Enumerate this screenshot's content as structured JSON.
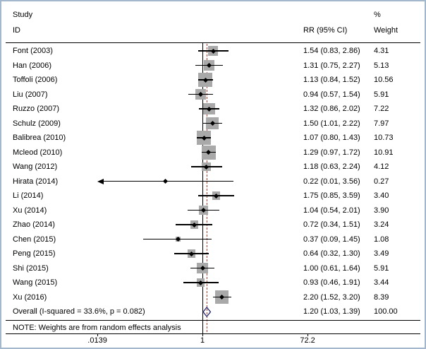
{
  "header": {
    "col_study_line1": "Study",
    "col_study_line2": "ID",
    "col_rr": "RR (95% CI)",
    "col_weight_line1": "%",
    "col_weight_line2": "Weight"
  },
  "note": "NOTE: Weights are from random effects analysis",
  "colors": {
    "square": "#a9a9a9",
    "ci_line": "#000000",
    "marker": "#000000",
    "null_line": "#000000",
    "overall_dash": "#c0392b",
    "diamond": "#26266e",
    "frame_border": "#a3b8cc"
  },
  "chart_data": {
    "type": "forest",
    "x_scale": "log10",
    "axis": {
      "min": 0.0139,
      "max": 72.2,
      "null_line": 1,
      "ticks": [
        ".0139",
        "1",
        "72.2"
      ],
      "tick_values": [
        0.0139,
        1,
        72.2
      ]
    },
    "studies": [
      {
        "label": "Font (2003)",
        "rr": 1.54,
        "lo": 0.83,
        "hi": 2.86,
        "ci_text": "1.54 (0.83, 2.86)",
        "weight": 4.31,
        "weight_text": "4.31"
      },
      {
        "label": "Han (2006)",
        "rr": 1.31,
        "lo": 0.75,
        "hi": 2.27,
        "ci_text": "1.31 (0.75, 2.27)",
        "weight": 5.13,
        "weight_text": "5.13"
      },
      {
        "label": "Toffoli (2006)",
        "rr": 1.13,
        "lo": 0.84,
        "hi": 1.52,
        "ci_text": "1.13 (0.84, 1.52)",
        "weight": 10.56,
        "weight_text": "10.56"
      },
      {
        "label": "Liu (2007)",
        "rr": 0.94,
        "lo": 0.57,
        "hi": 1.54,
        "ci_text": "0.94 (0.57, 1.54)",
        "weight": 5.91,
        "weight_text": "5.91"
      },
      {
        "label": "Ruzzo (2007)",
        "rr": 1.32,
        "lo": 0.86,
        "hi": 2.02,
        "ci_text": "1.32 (0.86, 2.02)",
        "weight": 7.22,
        "weight_text": "7.22"
      },
      {
        "label": "Schulz (2009)",
        "rr": 1.5,
        "lo": 1.01,
        "hi": 2.22,
        "ci_text": "1.50 (1.01, 2.22)",
        "weight": 7.97,
        "weight_text": "7.97"
      },
      {
        "label": "Balibrea (2010)",
        "rr": 1.07,
        "lo": 0.8,
        "hi": 1.43,
        "ci_text": "1.07 (0.80, 1.43)",
        "weight": 10.73,
        "weight_text": "10.73"
      },
      {
        "label": "Mcleod (2010)",
        "rr": 1.29,
        "lo": 0.97,
        "hi": 1.72,
        "ci_text": "1.29 (0.97, 1.72)",
        "weight": 10.91,
        "weight_text": "10.91"
      },
      {
        "label": "Wang (2012)",
        "rr": 1.18,
        "lo": 0.63,
        "hi": 2.24,
        "ci_text": "1.18 (0.63, 2.24)",
        "weight": 4.12,
        "weight_text": "4.12"
      },
      {
        "label": "Hirata (2014)",
        "rr": 0.22,
        "lo": 0.01,
        "hi": 3.56,
        "ci_text": "0.22 (0.01, 3.56)",
        "weight": 0.27,
        "weight_text": "0.27",
        "arrow_left": true
      },
      {
        "label": "Li (2014)",
        "rr": 1.75,
        "lo": 0.85,
        "hi": 3.59,
        "ci_text": "1.75 (0.85, 3.59)",
        "weight": 3.4,
        "weight_text": "3.40"
      },
      {
        "label": "Xu (2014)",
        "rr": 1.04,
        "lo": 0.54,
        "hi": 2.01,
        "ci_text": "1.04 (0.54, 2.01)",
        "weight": 3.9,
        "weight_text": "3.90"
      },
      {
        "label": "Zhao (2014)",
        "rr": 0.72,
        "lo": 0.34,
        "hi": 1.51,
        "ci_text": "0.72 (0.34, 1.51)",
        "weight": 3.24,
        "weight_text": "3.24"
      },
      {
        "label": "Chen (2015)",
        "rr": 0.37,
        "lo": 0.09,
        "hi": 1.45,
        "ci_text": "0.37 (0.09, 1.45)",
        "weight": 1.08,
        "weight_text": "1.08"
      },
      {
        "label": "Peng (2015)",
        "rr": 0.64,
        "lo": 0.32,
        "hi": 1.3,
        "ci_text": "0.64 (0.32, 1.30)",
        "weight": 3.49,
        "weight_text": "3.49"
      },
      {
        "label": "Shi (2015)",
        "rr": 1.0,
        "lo": 0.61,
        "hi": 1.64,
        "ci_text": "1.00 (0.61, 1.64)",
        "weight": 5.91,
        "weight_text": "5.91"
      },
      {
        "label": "Wang (2015)",
        "rr": 0.93,
        "lo": 0.46,
        "hi": 1.91,
        "ci_text": "0.93 (0.46, 1.91)",
        "weight": 3.44,
        "weight_text": "3.44"
      },
      {
        "label": "Xu (2016)",
        "rr": 2.2,
        "lo": 1.52,
        "hi": 3.2,
        "ci_text": "2.20 (1.52, 3.20)",
        "weight": 8.39,
        "weight_text": "8.39"
      }
    ],
    "overall": {
      "label": "Overall (I-squared = 33.6%, p = 0.082)",
      "rr": 1.2,
      "lo": 1.03,
      "hi": 1.39,
      "ci_text": "1.20 (1.03, 1.39)",
      "weight_text": "100.00"
    }
  }
}
